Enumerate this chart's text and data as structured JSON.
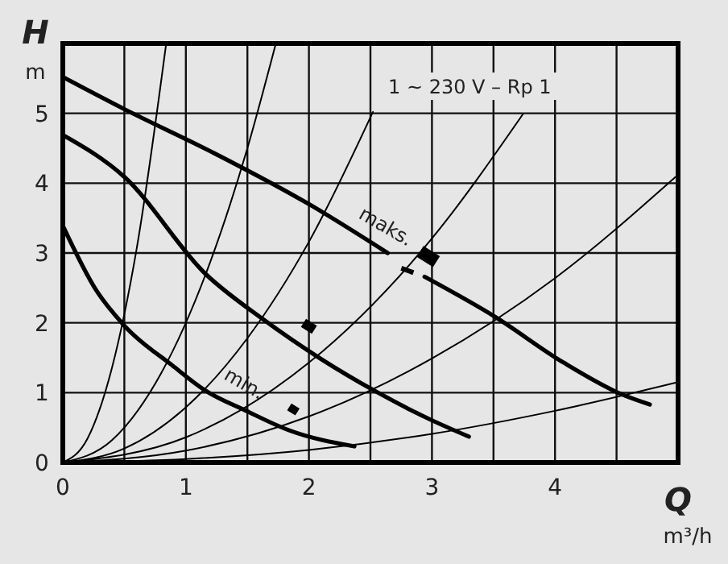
{
  "chart_data": {
    "type": "line",
    "subtitle": "1 ~ 230 V – Rp 1",
    "xlabel": "Q\nm³/h",
    "ylabel": "H\nm",
    "xlim": [
      0,
      5
    ],
    "ylim": [
      0,
      6
    ],
    "xticks": [
      0,
      {
        "value": 0.5,
        "label": null
      },
      1,
      {
        "value": 1.5,
        "label": null
      },
      2,
      {
        "value": 2.5,
        "label": null
      },
      3,
      {
        "value": 3.5,
        "label": null
      },
      4,
      {
        "value": 4.5,
        "label": null
      },
      {
        "value": 5,
        "label": null
      }
    ],
    "yticks": [
      0,
      1,
      2,
      3,
      4,
      5,
      {
        "value": 6,
        "label": null
      }
    ],
    "grid": true,
    "marker": "none",
    "line_style": "solid",
    "annotations": [
      "maks.",
      "min."
    ],
    "series": [
      {
        "color": "#000000",
        "x": [
          0,
          0.5,
          1.23,
          2.0,
          2.64,
          2.8,
          2.94,
          3.5,
          4.07,
          4.55,
          4.77
        ],
        "values": [
          5.52,
          5.06,
          4.43,
          3.7,
          3.0,
          null,
          2.66,
          2.1,
          1.43,
          0.97,
          0.83
        ]
      },
      {
        "color": "#000000",
        "x": [
          0,
          0.5,
          1.16,
          1.62,
          2.1,
          2.54,
          2.98,
          3.3
        ],
        "values": [
          4.69,
          4.09,
          2.7,
          2.06,
          1.48,
          1.02,
          0.62,
          0.37
        ]
      },
      {
        "color": "#000000",
        "x": [
          0,
          0.27,
          0.5,
          0.89,
          1.15,
          1.49,
          1.84,
          2.37
        ],
        "values": [
          3.39,
          2.47,
          1.96,
          1.39,
          1.04,
          0.74,
          0.46,
          0.23
        ]
      },
      {
        "color": "#000000",
        "x": [
          0,
          0.2,
          0.4,
          0.6,
          0.84
        ],
        "values": [
          0,
          0.34,
          1.36,
          3.06,
          6.0
        ]
      },
      {
        "color": "#000000",
        "x": [
          0,
          0.4,
          0.8,
          1.2,
          1.5,
          1.73
        ],
        "values": [
          0,
          0.32,
          1.28,
          2.88,
          4.5,
          5.99
        ]
      },
      {
        "color": "#000000",
        "x": [
          0,
          0.5,
          1,
          1.5,
          2,
          2.52
        ],
        "values": [
          0,
          0.2,
          0.79,
          1.78,
          3.16,
          5.02
        ]
      },
      {
        "color": "#000000",
        "x": [
          0,
          1,
          2,
          3,
          3.74
        ],
        "values": [
          0,
          0.36,
          1.43,
          3.21,
          4.99
        ]
      },
      {
        "color": "#000000",
        "x": [
          0,
          1,
          2,
          3,
          4,
          4.98
        ],
        "values": [
          0,
          0.17,
          0.66,
          1.49,
          2.64,
          4.09
        ]
      },
      {
        "color": "#000000",
        "x": [
          0,
          1,
          2,
          3,
          4,
          5
        ],
        "values": [
          0,
          0.05,
          0.18,
          0.41,
          0.74,
          1.15
        ]
      }
    ]
  }
}
